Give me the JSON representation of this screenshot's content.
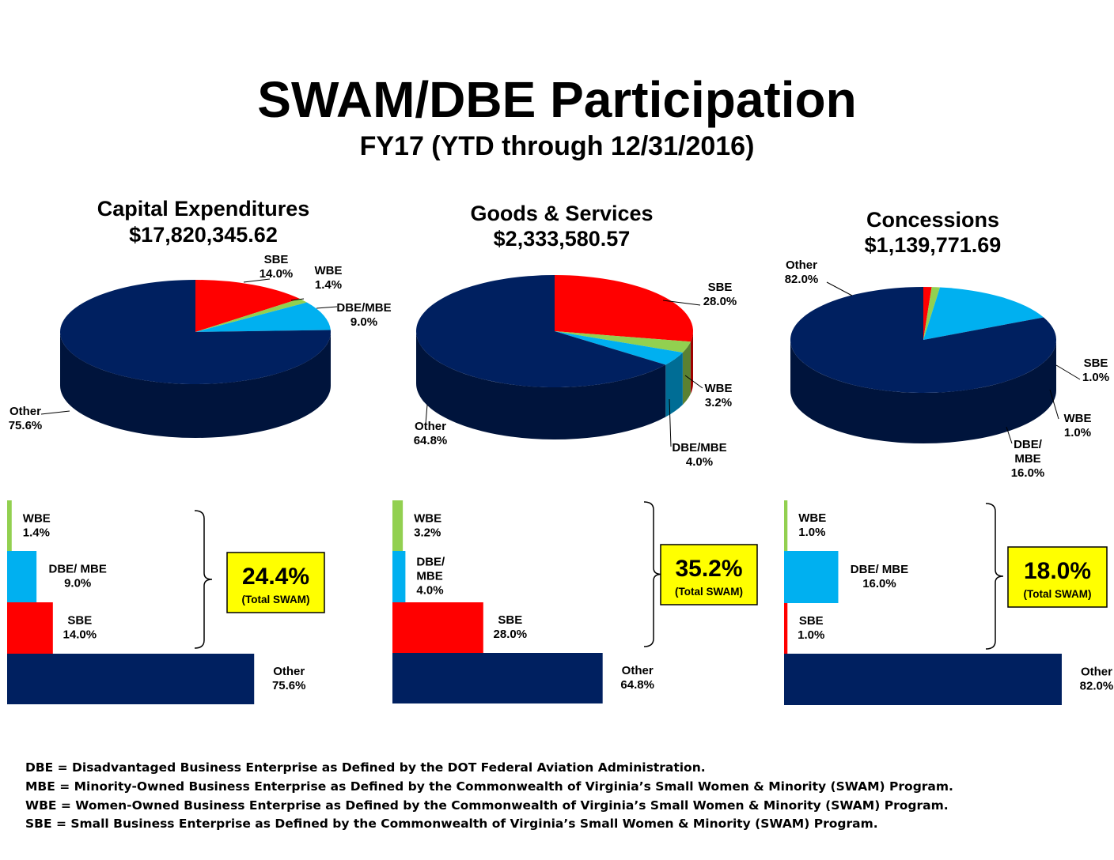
{
  "title": "SWAM/DBE Participation",
  "subtitle": "FY17 (YTD through 12/31/2016)",
  "colors": {
    "SBE": "#ff0000",
    "WBE": "#92d050",
    "DBE/MBE": "#00b0f0",
    "Other": "#002060",
    "callout_fill": "#ffff00"
  },
  "chart_data": [
    {
      "type": "pie",
      "title": "Capital Expenditures",
      "subtitle": "$17,820,345.62",
      "slices": [
        {
          "name": "SBE",
          "value": 14.0,
          "label": "SBE",
          "pct": "14.0%"
        },
        {
          "name": "WBE",
          "value": 1.4,
          "label": "WBE",
          "pct": "1.4%"
        },
        {
          "name": "DBE/MBE",
          "value": 9.0,
          "label": "DBE/MBE",
          "pct": "9.0%"
        },
        {
          "name": "Other",
          "value": 75.6,
          "label": "Other",
          "pct": "75.6%"
        }
      ],
      "bars": [
        {
          "name": "WBE",
          "value": 1.4,
          "label": "WBE",
          "pct": "1.4%"
        },
        {
          "name": "DBE/MBE",
          "value": 9.0,
          "label": "DBE/ MBE",
          "pct": "9.0%"
        },
        {
          "name": "SBE",
          "value": 14.0,
          "label": "SBE",
          "pct": "14.0%"
        },
        {
          "name": "Other",
          "value": 75.6,
          "label": "Other",
          "pct": "75.6%"
        }
      ],
      "total": {
        "value": "24.4%",
        "caption": "(Total SWAM)"
      }
    },
    {
      "type": "pie",
      "title": "Goods & Services",
      "subtitle": "$2,333,580.57",
      "slices": [
        {
          "name": "SBE",
          "value": 28.0,
          "label": "SBE",
          "pct": "28.0%"
        },
        {
          "name": "WBE",
          "value": 3.2,
          "label": "WBE",
          "pct": "3.2%"
        },
        {
          "name": "DBE/MBE",
          "value": 4.0,
          "label": "DBE/MBE",
          "pct": "4.0%"
        },
        {
          "name": "Other",
          "value": 64.8,
          "label": "Other",
          "pct": "64.8%"
        }
      ],
      "bars": [
        {
          "name": "WBE",
          "value": 3.2,
          "label": "WBE",
          "pct": "3.2%"
        },
        {
          "name": "DBE/MBE",
          "value": 4.0,
          "label": "DBE/ MBE",
          "pct": "4.0%"
        },
        {
          "name": "SBE",
          "value": 28.0,
          "label": "SBE",
          "pct": "28.0%"
        },
        {
          "name": "Other",
          "value": 64.8,
          "label": "Other",
          "pct": "64.8%"
        }
      ],
      "total": {
        "value": "35.2%",
        "caption": "(Total SWAM)"
      }
    },
    {
      "type": "pie",
      "title": "Concessions",
      "subtitle": "$1,139,771.69",
      "slices": [
        {
          "name": "SBE",
          "value": 1.0,
          "label": "SBE",
          "pct": "1.0%"
        },
        {
          "name": "WBE",
          "value": 1.0,
          "label": "WBE",
          "pct": "1.0%"
        },
        {
          "name": "DBE/MBE",
          "value": 16.0,
          "label": "DBE/ MBE",
          "pct": "16.0%"
        },
        {
          "name": "Other",
          "value": 82.0,
          "label": "Other",
          "pct": "82.0%"
        }
      ],
      "bars": [
        {
          "name": "WBE",
          "value": 1.0,
          "label": "WBE",
          "pct": "1.0%"
        },
        {
          "name": "DBE/MBE",
          "value": 16.0,
          "label": "DBE/ MBE",
          "pct": "16.0%"
        },
        {
          "name": "SBE",
          "value": 1.0,
          "label": "SBE",
          "pct": "1.0%"
        },
        {
          "name": "Other",
          "value": 82.0,
          "label": "Other",
          "pct": "82.0%"
        }
      ],
      "total": {
        "value": "18.0%",
        "caption": "(Total SWAM)"
      }
    }
  ],
  "footnotes": [
    "DBE = Disadvantaged Business Enterprise as Defined by the DOT Federal Aviation Administration.",
    "MBE = Minority-Owned Business Enterprise as Defined by the Commonwealth of Virginia’s Small Women & Minority (SWAM) Program.",
    "WBE = Women-Owned Business Enterprise as Defined by the Commonwealth of Virginia’s Small Women & Minority (SWAM) Program.",
    "SBE = Small Business Enterprise as Defined by the Commonwealth of Virginia’s Small Women & Minority (SWAM) Program."
  ]
}
